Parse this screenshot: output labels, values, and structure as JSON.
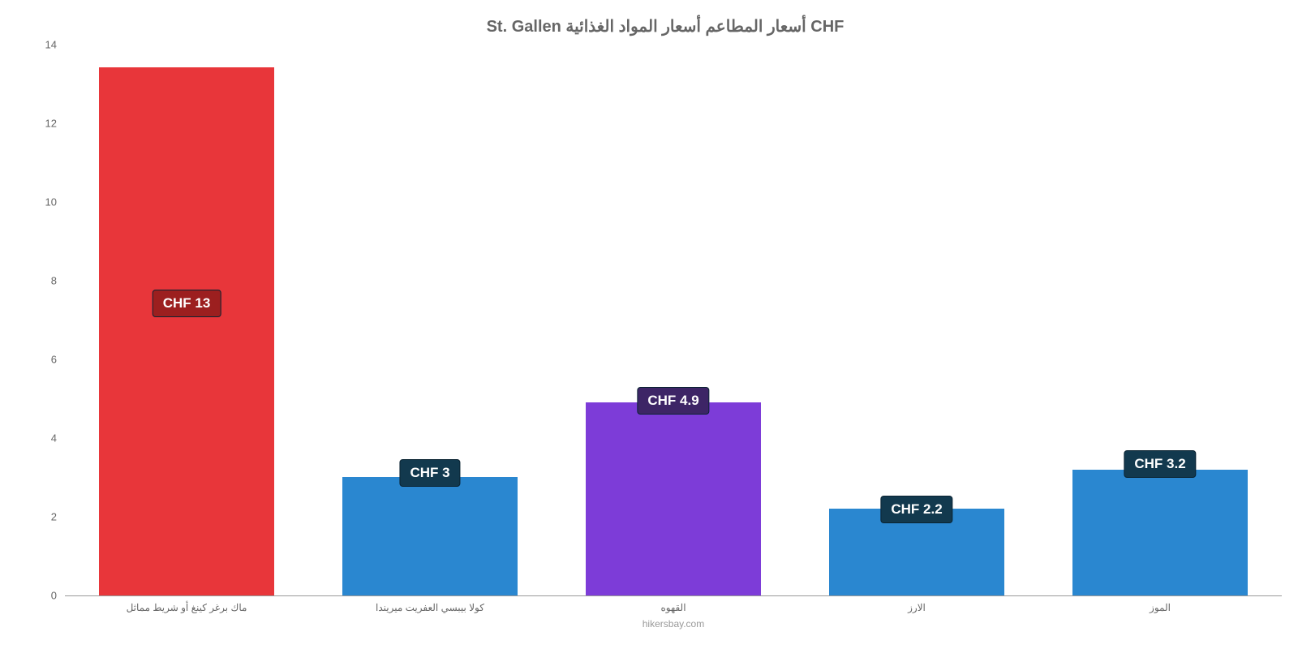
{
  "chart": {
    "type": "bar",
    "title": "St. Gallen أسعار المطاعم أسعار المواد الغذائية CHF",
    "title_fontsize": 20,
    "title_color": "#666666",
    "background_color": "#ffffff",
    "axis_color": "#999999",
    "tick_color": "#666666",
    "tick_fontsize": 13,
    "x_label_fontsize": 12,
    "x_label_color": "#666666",
    "ylim": [
      0,
      14
    ],
    "ytick_step": 2,
    "yticks": [
      0,
      2,
      4,
      6,
      8,
      10,
      12,
      14
    ],
    "bar_width_pct": 72,
    "bars": [
      {
        "category": "ماك برغر كينغ أو شريط مماثل",
        "value": 13.4,
        "label": "CHF 13",
        "color": "#e8363a",
        "label_bg": "#9c1f1f",
        "label_offset_pct": 42
      },
      {
        "category": "كولا بيبسي العفريت ميريندا",
        "value": 3.0,
        "label": "CHF 3",
        "color": "#2a87d0",
        "label_bg": "#12394e",
        "label_offset_pct": -15
      },
      {
        "category": "القهوه",
        "value": 4.9,
        "label": "CHF 4.9",
        "color": "#7d3cd8",
        "label_bg": "#3d2566",
        "label_offset_pct": -8
      },
      {
        "category": "الارز",
        "value": 2.2,
        "label": "CHF 2.2",
        "color": "#2a87d0",
        "label_bg": "#12394e",
        "label_offset_pct": -15
      },
      {
        "category": "الموز",
        "value": 3.2,
        "label": "CHF 3.2",
        "color": "#2a87d0",
        "label_bg": "#12394e",
        "label_offset_pct": -15
      }
    ],
    "source": "hikersbay.com",
    "source_color": "#999999",
    "source_fontsize": 12
  }
}
